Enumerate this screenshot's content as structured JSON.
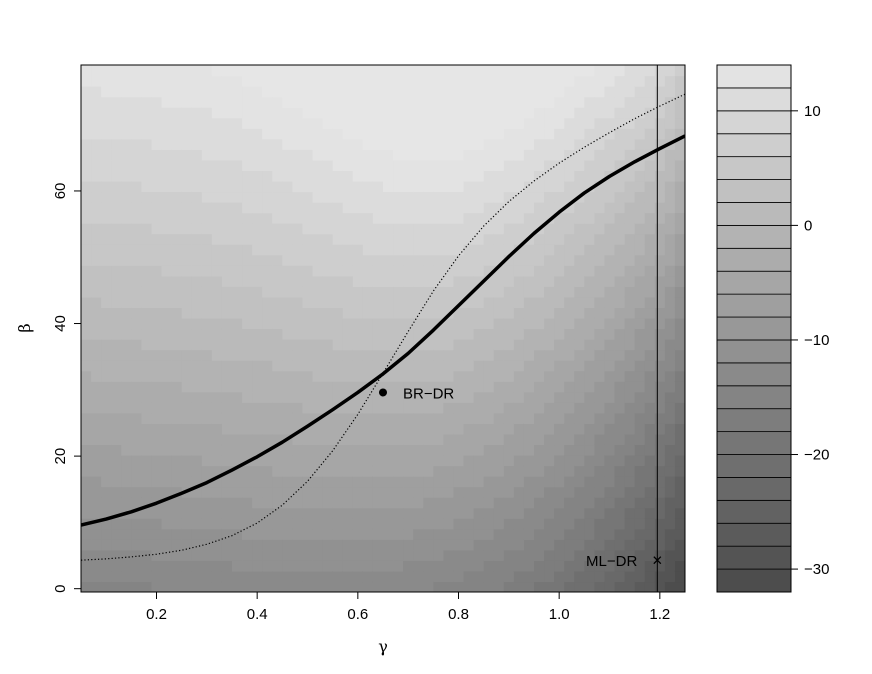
{
  "chart_data": {
    "type": "heatmap",
    "title": "",
    "xlabel": "γ",
    "ylabel": "β",
    "xlim": [
      0.05,
      1.25
    ],
    "ylim": [
      -0.5,
      79
    ],
    "x_ticks": [
      0.2,
      0.4,
      0.6,
      0.8,
      1.0,
      1.2
    ],
    "x_tick_labels": [
      "0.2",
      "0.4",
      "0.6",
      "0.8",
      "1.0",
      "1.2"
    ],
    "y_ticks": [
      0,
      20,
      40,
      60
    ],
    "y_tick_labels": [
      "0",
      "20",
      "40",
      "60"
    ],
    "colorbar": {
      "range": [
        -32,
        14
      ],
      "step": 2,
      "ticks": [
        10,
        0,
        -10,
        -20,
        -30
      ],
      "tick_labels": [
        "10",
        "0",
        "−10",
        "−20",
        "−30"
      ],
      "color_low": "#4a4a4a",
      "color_high": "#e6e6e6"
    },
    "grid": false,
    "series": [
      {
        "style": "solid-thick",
        "x": [
          0.05,
          0.1,
          0.15,
          0.2,
          0.25,
          0.3,
          0.35,
          0.4,
          0.45,
          0.5,
          0.55,
          0.6,
          0.65,
          0.7,
          0.75,
          0.8,
          0.85,
          0.9,
          0.95,
          1.0,
          1.05,
          1.1,
          1.15,
          1.2,
          1.25
        ],
        "y": [
          9.6,
          10.5,
          11.6,
          12.9,
          14.4,
          16.0,
          17.9,
          19.9,
          22.1,
          24.5,
          27.0,
          29.6,
          32.4,
          35.5,
          39.0,
          42.7,
          46.4,
          50.1,
          53.6,
          56.8,
          59.7,
          62.2,
          64.4,
          66.4,
          68.3
        ]
      },
      {
        "style": "dotted",
        "x": [
          0.05,
          0.1,
          0.15,
          0.2,
          0.25,
          0.3,
          0.35,
          0.4,
          0.45,
          0.5,
          0.55,
          0.6,
          0.65,
          0.7,
          0.75,
          0.8,
          0.85,
          0.9,
          0.95,
          1.0,
          1.05,
          1.1,
          1.15,
          1.2,
          1.25
        ],
        "y": [
          4.3,
          4.5,
          4.8,
          5.2,
          5.8,
          6.7,
          8.0,
          9.9,
          12.6,
          16.2,
          20.8,
          26.3,
          32.5,
          38.8,
          44.9,
          50.2,
          54.7,
          58.4,
          61.5,
          64.2,
          66.6,
          68.8,
          70.9,
          72.8,
          74.6
        ]
      }
    ],
    "vertical_line": {
      "x": 1.195
    },
    "points": [
      {
        "label": "BR−DR",
        "x": 0.65,
        "y": 29.6,
        "marker": "dot"
      },
      {
        "label": "ML−DR",
        "x": 1.195,
        "y": 4.3,
        "marker": "cross"
      }
    ]
  }
}
